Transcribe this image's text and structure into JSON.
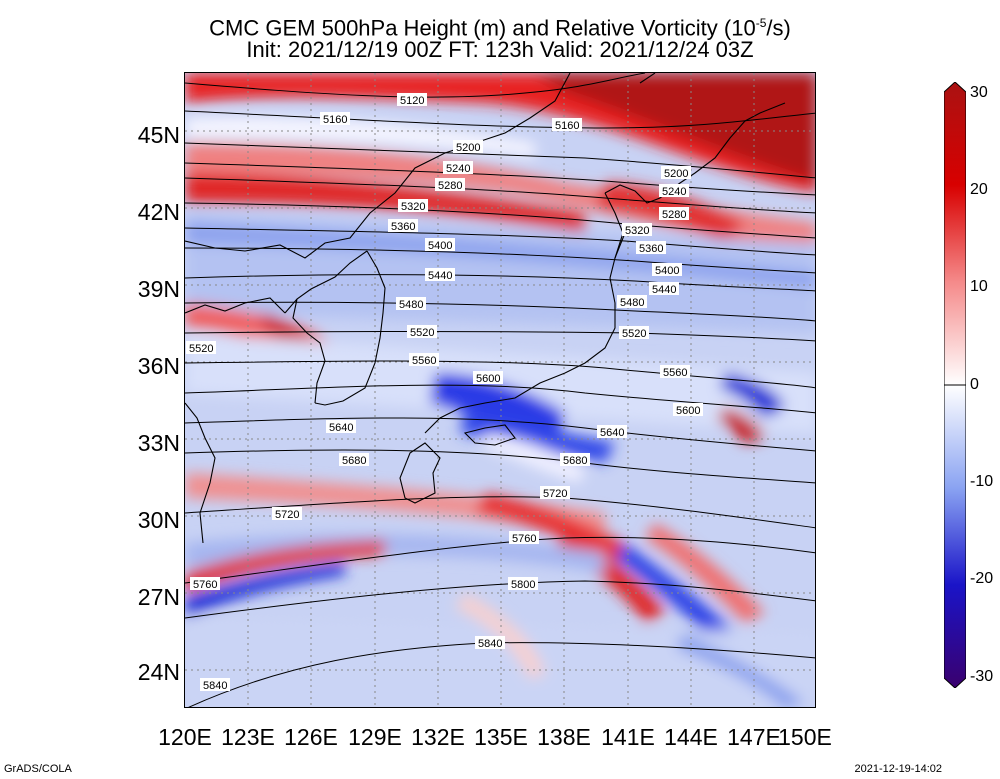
{
  "title": {
    "line1_a": "CMC GEM 500hPa Height (m) and Relative Vorticity (10",
    "line1_exp": "-5",
    "line1_b": "/s)",
    "line2": "Init: 2021/12/19 00Z  FT: 123h  Valid: 2021/12/24 03Z"
  },
  "y_ticks": [
    "45N",
    "42N",
    "39N",
    "36N",
    "33N",
    "30N",
    "27N",
    "24N"
  ],
  "x_ticks": [
    "120E",
    "123E",
    "126E",
    "129E",
    "132E",
    "135E",
    "138E",
    "141E",
    "144E",
    "147E",
    "150E"
  ],
  "contour_labels": [
    "5120",
    "5160",
    "5200",
    "5240",
    "5280",
    "5320",
    "5360",
    "5400",
    "5440",
    "5480",
    "5520",
    "5560",
    "5600",
    "5640",
    "5680",
    "5720",
    "5760",
    "5800",
    "5840"
  ],
  "colorbar": {
    "ticks": [
      "30",
      "20",
      "10",
      "0",
      "-10",
      "-20",
      "-30"
    ],
    "colors": [
      "#3a006e",
      "#1a14c8",
      "#3c5ff0",
      "#8aa3f2",
      "#d2dcf8",
      "#ffffff",
      "#f8d2d2",
      "#f58a8a",
      "#f03030",
      "#d80000",
      "#aa1212"
    ]
  },
  "footer": {
    "left": "GrADS/COLA",
    "right": "2021-12-19-14:02"
  }
}
